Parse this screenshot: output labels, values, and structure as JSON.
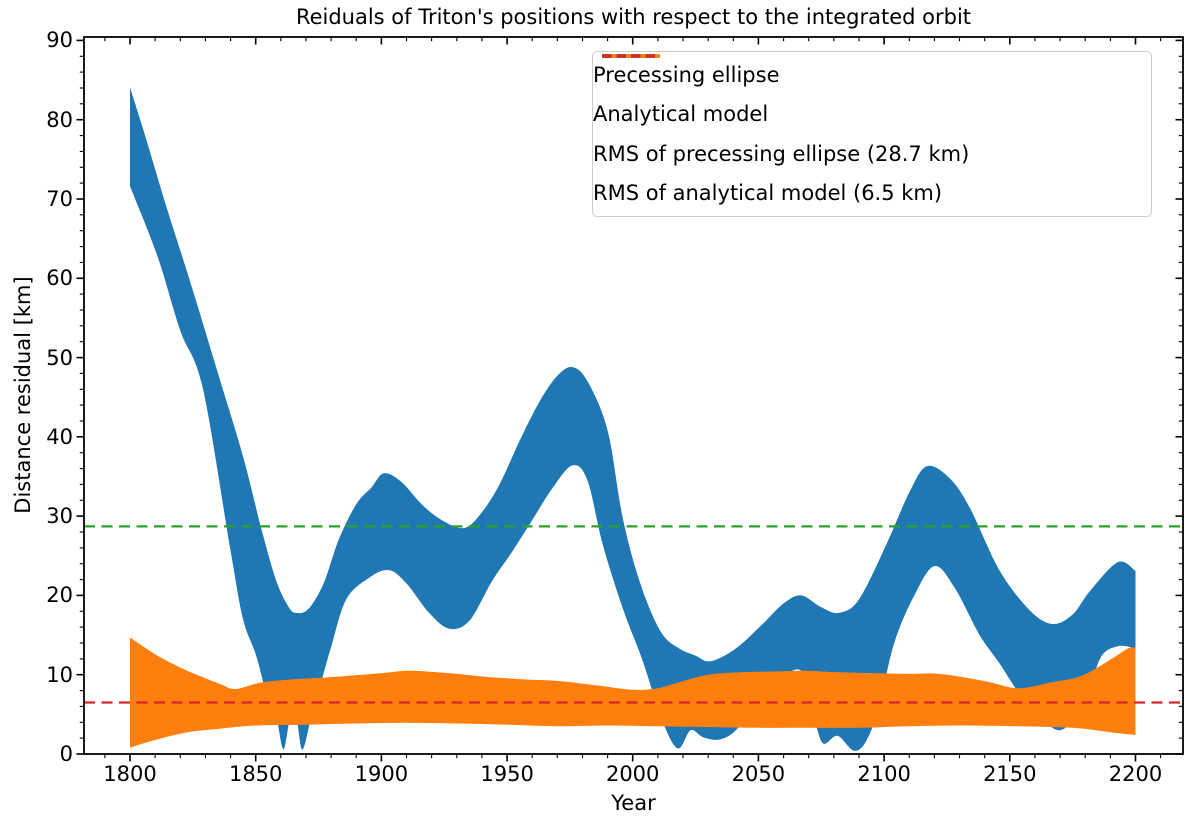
{
  "title": "Reiduals of Triton's positions with respect to the integrated orbit",
  "chart_data": {
    "type": "area",
    "title": "Reiduals of Triton's positions with respect to the integrated orbit",
    "xlabel": "Year",
    "ylabel": "Distance residual [km]",
    "xlim": [
      1781.7,
      2218.9
    ],
    "ylim": [
      0,
      90.43
    ],
    "x_ticks": [
      1800,
      1850,
      1900,
      1950,
      2000,
      2050,
      2100,
      2150,
      2200
    ],
    "y_ticks": [
      0,
      10,
      20,
      30,
      40,
      50,
      60,
      70,
      80,
      90
    ],
    "x_minor_step": 10,
    "y_minor_step": 2,
    "grid": false,
    "legend_position": "upper right",
    "series": [
      {
        "name": "Precessing ellipse",
        "kind": "band",
        "color": "#1f77b4",
        "upper": [
          [
            1800,
            84.1
          ],
          [
            1806,
            78
          ],
          [
            1815,
            68.5
          ],
          [
            1825,
            58.5
          ],
          [
            1835,
            48
          ],
          [
            1845,
            37.5
          ],
          [
            1852,
            28.7
          ],
          [
            1858,
            22
          ],
          [
            1863,
            18.6
          ],
          [
            1866,
            17.8
          ],
          [
            1871,
            18.3
          ],
          [
            1877,
            21.5
          ],
          [
            1883,
            27
          ],
          [
            1890,
            31.5
          ],
          [
            1896,
            33.6
          ],
          [
            1901,
            35.4
          ],
          [
            1908,
            34.3
          ],
          [
            1916,
            31.5
          ],
          [
            1924,
            29.5
          ],
          [
            1933,
            28.5
          ],
          [
            1940,
            30.5
          ],
          [
            1947,
            34
          ],
          [
            1955,
            39.5
          ],
          [
            1963,
            44.5
          ],
          [
            1970,
            47.7
          ],
          [
            1976,
            48.8
          ],
          [
            1982,
            47
          ],
          [
            1990,
            40.8
          ],
          [
            1996,
            29.8
          ],
          [
            2003,
            21.5
          ],
          [
            2011,
            15.5
          ],
          [
            2018,
            13.4
          ],
          [
            2025,
            12.4
          ],
          [
            2031,
            11.7
          ],
          [
            2041,
            13.3
          ],
          [
            2052,
            16.5
          ],
          [
            2060,
            19
          ],
          [
            2067,
            20
          ],
          [
            2075,
            18.5
          ],
          [
            2082,
            17.8
          ],
          [
            2090,
            19.5
          ],
          [
            2101,
            26.5
          ],
          [
            2110,
            33
          ],
          [
            2117,
            36.3
          ],
          [
            2126,
            34.8
          ],
          [
            2134,
            31.1
          ],
          [
            2146,
            23.1
          ],
          [
            2158,
            18.1
          ],
          [
            2167,
            16.4
          ],
          [
            2175,
            17.6
          ],
          [
            2182,
            20.6
          ],
          [
            2193,
            24.2
          ],
          [
            2200,
            23.1
          ]
        ],
        "lower": [
          [
            1800,
            71.6
          ],
          [
            1811,
            62.7
          ],
          [
            1820,
            53.4
          ],
          [
            1829,
            46.1
          ],
          [
            1840,
            25.6
          ],
          [
            1845,
            17
          ],
          [
            1850,
            12.6
          ],
          [
            1854,
            8
          ],
          [
            1858,
            5
          ],
          [
            1861,
            0.6
          ],
          [
            1863.5,
            4.2
          ],
          [
            1866,
            5
          ],
          [
            1868.5,
            0.55
          ],
          [
            1872,
            4.5
          ],
          [
            1876,
            9
          ],
          [
            1880,
            13.5
          ],
          [
            1886,
            19.5
          ],
          [
            1895,
            22.2
          ],
          [
            1903,
            23.2
          ],
          [
            1910,
            21.5
          ],
          [
            1919,
            17.8
          ],
          [
            1927,
            15.8
          ],
          [
            1935,
            16.8
          ],
          [
            1944,
            21.8
          ],
          [
            1952,
            25.5
          ],
          [
            1960,
            29.5
          ],
          [
            1968,
            33.5
          ],
          [
            1976,
            36.4
          ],
          [
            1982,
            34.5
          ],
          [
            1988,
            26.5
          ],
          [
            1996,
            18.4
          ],
          [
            2004,
            11.7
          ],
          [
            2012,
            4
          ],
          [
            2018,
            0.7
          ],
          [
            2023,
            3
          ],
          [
            2028,
            2.1
          ],
          [
            2034,
            1.8
          ],
          [
            2040,
            2.7
          ],
          [
            2046,
            5
          ],
          [
            2052,
            8.5
          ],
          [
            2060,
            10
          ],
          [
            2067,
            10.5
          ],
          [
            2070,
            7
          ],
          [
            2073,
            3.5
          ],
          [
            2076,
            1.3
          ],
          [
            2081.5,
            2.3
          ],
          [
            2088,
            0.4
          ],
          [
            2093,
            1.7
          ],
          [
            2098,
            6
          ],
          [
            2104,
            14
          ],
          [
            2112,
            20
          ],
          [
            2120,
            23.7
          ],
          [
            2128,
            21
          ],
          [
            2138,
            15
          ],
          [
            2146,
            11.4
          ],
          [
            2153,
            8
          ],
          [
            2160,
            5.5
          ],
          [
            2170,
            3
          ],
          [
            2180,
            6.5
          ],
          [
            2186,
            12.1
          ],
          [
            2193,
            13.6
          ],
          [
            2200,
            13.3
          ]
        ]
      },
      {
        "name": "Analytical model",
        "kind": "band",
        "color": "#ff7f0e",
        "upper": [
          [
            1800,
            14.7
          ],
          [
            1806,
            13.4
          ],
          [
            1812,
            12.2
          ],
          [
            1820,
            10.9
          ],
          [
            1828,
            9.8
          ],
          [
            1836,
            8.8
          ],
          [
            1842,
            8.2
          ],
          [
            1852,
            9
          ],
          [
            1864,
            9.4
          ],
          [
            1880,
            9.7
          ],
          [
            1900,
            10.2
          ],
          [
            1911,
            10.5
          ],
          [
            1927,
            10.2
          ],
          [
            1943,
            9.7
          ],
          [
            1958,
            9.4
          ],
          [
            1971,
            9.2
          ],
          [
            1987,
            8.6
          ],
          [
            2000,
            8.1
          ],
          [
            2010,
            8.3
          ],
          [
            2020,
            9.2
          ],
          [
            2030,
            10
          ],
          [
            2043,
            10.3
          ],
          [
            2055,
            10.4
          ],
          [
            2069,
            10.5
          ],
          [
            2082,
            10.3
          ],
          [
            2095,
            10.2
          ],
          [
            2110,
            10.1
          ],
          [
            2122,
            10.1
          ],
          [
            2140,
            9.2
          ],
          [
            2153,
            8.3
          ],
          [
            2166,
            9
          ],
          [
            2178,
            9.8
          ],
          [
            2189,
            11.7
          ],
          [
            2197,
            13.3
          ],
          [
            2200,
            13.4
          ]
        ],
        "lower": [
          [
            1800,
            0.8
          ],
          [
            1806,
            1.4
          ],
          [
            1814,
            2.1
          ],
          [
            1824,
            2.8
          ],
          [
            1836,
            3.2
          ],
          [
            1850,
            3.6
          ],
          [
            1870,
            3.7
          ],
          [
            1890,
            3.85
          ],
          [
            1910,
            3.95
          ],
          [
            1930,
            3.85
          ],
          [
            1950,
            3.7
          ],
          [
            1970,
            3.5
          ],
          [
            1990,
            3.6
          ],
          [
            2010,
            3.5
          ],
          [
            2030,
            3.4
          ],
          [
            2050,
            3.3
          ],
          [
            2070,
            3.3
          ],
          [
            2090,
            3.3
          ],
          [
            2110,
            3.5
          ],
          [
            2130,
            3.6
          ],
          [
            2153,
            3.5
          ],
          [
            2175,
            3.3
          ],
          [
            2191,
            2.7
          ],
          [
            2200,
            2.4
          ]
        ]
      },
      {
        "name": "RMS of precessing ellipse (28.7 km)",
        "kind": "hline",
        "color": "#2ca02c",
        "value": 28.7,
        "linestyle": "dashed"
      },
      {
        "name": "RMS of analytical model (6.5 km)",
        "kind": "hline",
        "color": "#d62728",
        "value": 6.5,
        "linestyle": "dashed"
      }
    ]
  },
  "rms_precessing_km": 28.7,
  "rms_analytical_km": 6.5,
  "colors": {
    "precessing_ellipse": "#1f77b4",
    "analytical_model": "#ff7f0e",
    "rms_precessing": "#2ca02c",
    "rms_analytical": "#d62728",
    "axes": "#000000",
    "legend_border": "#cccccc",
    "background": "#ffffff"
  }
}
